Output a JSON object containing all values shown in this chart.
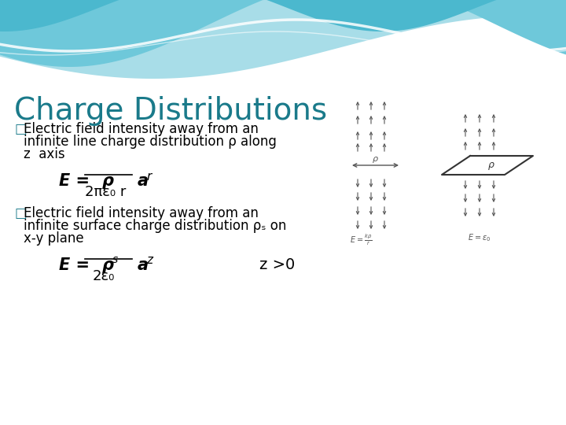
{
  "title": "Charge Distributions",
  "title_color": "#1A7A8A",
  "title_fontsize": 28,
  "bg_color": "#FFFFFF",
  "bullet1_line1": "□ Electric field intensity away from an",
  "bullet1_line2": "   infinite line charge distribution ρ along",
  "bullet1_line3": "   z  axis",
  "bullet2_line1": "□ Electric field intensity away from an",
  "bullet2_line2": "   infinite surface charge distribution ρₛ on",
  "bullet2_line3": "   x-y plane",
  "eq2_cond": "z >0",
  "text_color": "#000000",
  "bullet_color": "#1A7A8A",
  "text_fontsize": 12,
  "eq_fontsize": 14,
  "diagram_color": "#555555"
}
